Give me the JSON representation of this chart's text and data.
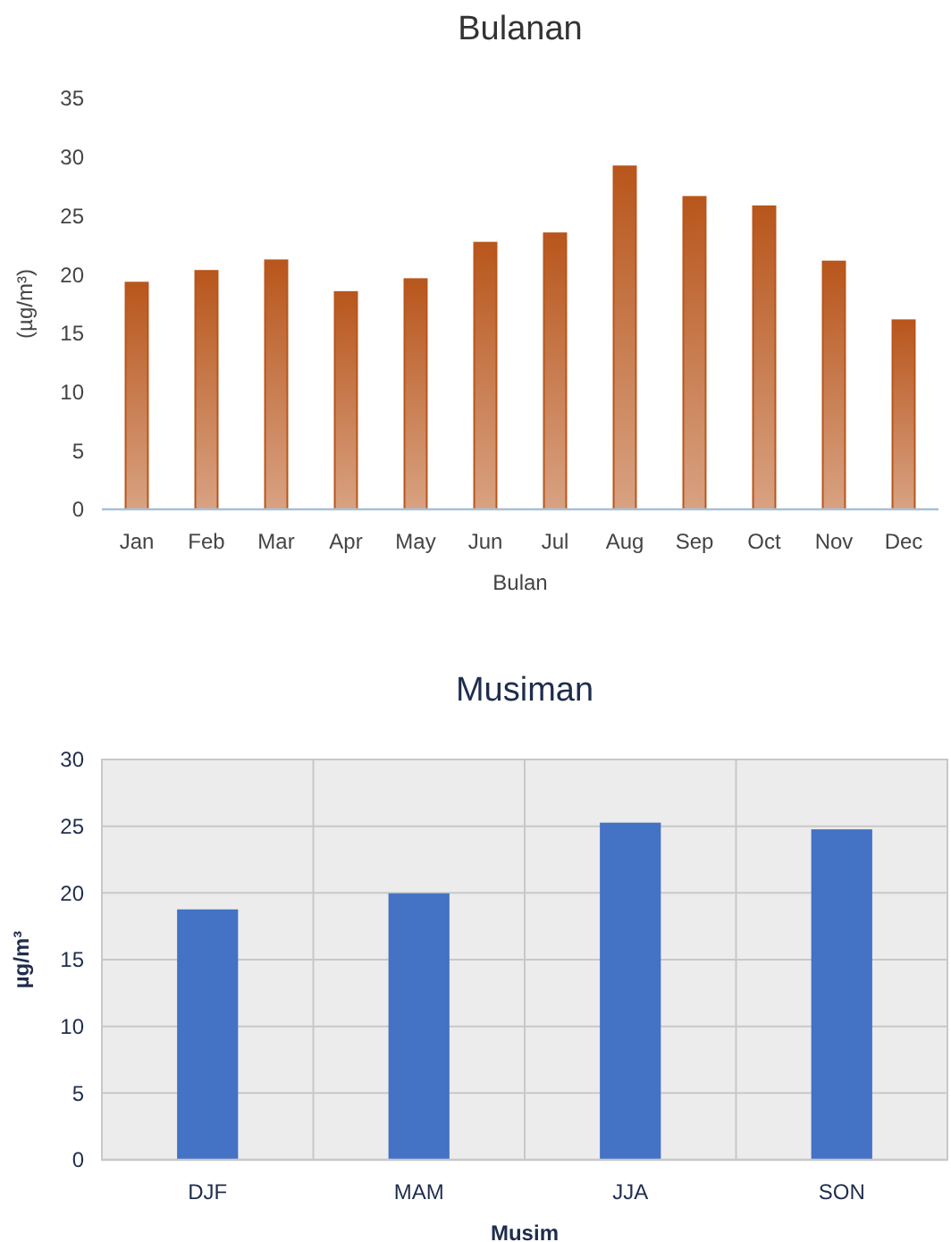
{
  "chart_data": [
    {
      "type": "bar",
      "title": "Bulanan",
      "xlabel": "Bulan",
      "ylabel": "(µg/m³)",
      "categories": [
        "Jan",
        "Feb",
        "Mar",
        "Apr",
        "May",
        "Jun",
        "Jul",
        "Aug",
        "Sep",
        "Oct",
        "Nov",
        "Dec"
      ],
      "values": [
        19.3,
        20.3,
        21.2,
        18.5,
        19.6,
        22.7,
        23.5,
        29.2,
        26.6,
        25.8,
        21.1,
        16.1
      ],
      "color": "#b8561c",
      "ylim": [
        0,
        35
      ],
      "yticks": [
        0,
        5,
        10,
        15,
        20,
        25,
        30,
        35
      ],
      "grid": false
    },
    {
      "type": "bar",
      "title": "Musiman",
      "xlabel": "Musim",
      "ylabel": "µg/m³",
      "categories": [
        "DJF",
        "MAM",
        "JJA",
        "SON"
      ],
      "values": [
        18.7,
        19.9,
        25.2,
        24.7
      ],
      "color": "#4472c4",
      "ylim": [
        0,
        30
      ],
      "yticks": [
        0,
        5,
        10,
        15,
        20,
        25,
        30
      ],
      "grid": true
    }
  ]
}
